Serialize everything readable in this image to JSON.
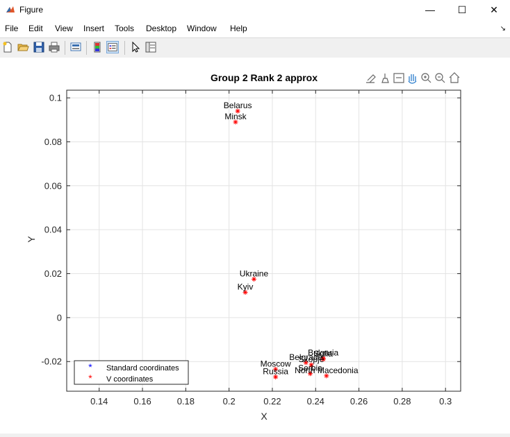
{
  "window": {
    "title": "Figure",
    "controls": {
      "minimize": "—",
      "maximize": "☐",
      "close": "✕"
    }
  },
  "menu": {
    "items": [
      "File",
      "Edit",
      "View",
      "Insert",
      "Tools",
      "Desktop",
      "Window",
      "Help"
    ],
    "dock_glyph": "↘"
  },
  "toolbar": {
    "icons": [
      "new-figure-icon",
      "open-file-icon",
      "save-icon",
      "print-icon",
      "print-preview-icon",
      "colorbar-icon",
      "legend-icon",
      "pointer-icon",
      "property-inspector-icon"
    ]
  },
  "axes_toolbar": {
    "icons": [
      "export-icon",
      "brush-icon",
      "data-tips-icon",
      "pan-icon",
      "zoom-in-icon",
      "zoom-out-icon",
      "home-icon"
    ]
  },
  "chart_data": {
    "type": "scatter",
    "title": "Group 2 Rank 2 approx",
    "xlabel": "X",
    "ylabel": "Y",
    "xlim": [
      0.125,
      0.307
    ],
    "ylim": [
      -0.0335,
      0.1035
    ],
    "xticks": [
      0.14,
      0.16,
      0.18,
      0.2,
      0.22,
      0.24,
      0.26,
      0.28,
      0.3
    ],
    "xtick_labels": [
      "0.14",
      "0.16",
      "0.18",
      "0.2",
      "0.22",
      "0.24",
      "0.26",
      "0.28",
      "0.3"
    ],
    "yticks": [
      -0.02,
      0,
      0.02,
      0.04,
      0.06,
      0.08,
      0.1
    ],
    "ytick_labels": [
      "-0.02",
      "0",
      "0.02",
      "0.04",
      "0.06",
      "0.08",
      "0.1"
    ],
    "grid": true,
    "legend": {
      "position": "bottom-left",
      "entries": [
        {
          "label": "Standard coordinates",
          "color": "#0000ff"
        },
        {
          "label": "V coordinates",
          "color": "#ff0000"
        }
      ]
    },
    "series": [
      {
        "name": "V coordinates",
        "color": "#ff0000",
        "marker": "*",
        "points": [
          {
            "label": "Belarus",
            "x": 0.204,
            "y": 0.094
          },
          {
            "label": "Minsk",
            "x": 0.203,
            "y": 0.089
          },
          {
            "label": "Ukraine",
            "x": 0.2115,
            "y": 0.0175
          },
          {
            "label": "Kyiv",
            "x": 0.2075,
            "y": 0.0115
          },
          {
            "label": "Moscow",
            "x": 0.2215,
            "y": -0.0235
          },
          {
            "label": "Russia",
            "x": 0.2215,
            "y": -0.027
          },
          {
            "label": "Belgrade",
            "x": 0.2355,
            "y": -0.0205
          },
          {
            "label": "Sofia",
            "x": 0.2435,
            "y": -0.019
          },
          {
            "label": "Bulgaria",
            "x": 0.2435,
            "y": -0.0185
          },
          {
            "label": "Skopje",
            "x": 0.238,
            "y": -0.0215
          },
          {
            "label": "Serbia",
            "x": 0.2375,
            "y": -0.0255
          },
          {
            "label": "North Macedonia",
            "x": 0.245,
            "y": -0.0265
          }
        ]
      }
    ]
  }
}
